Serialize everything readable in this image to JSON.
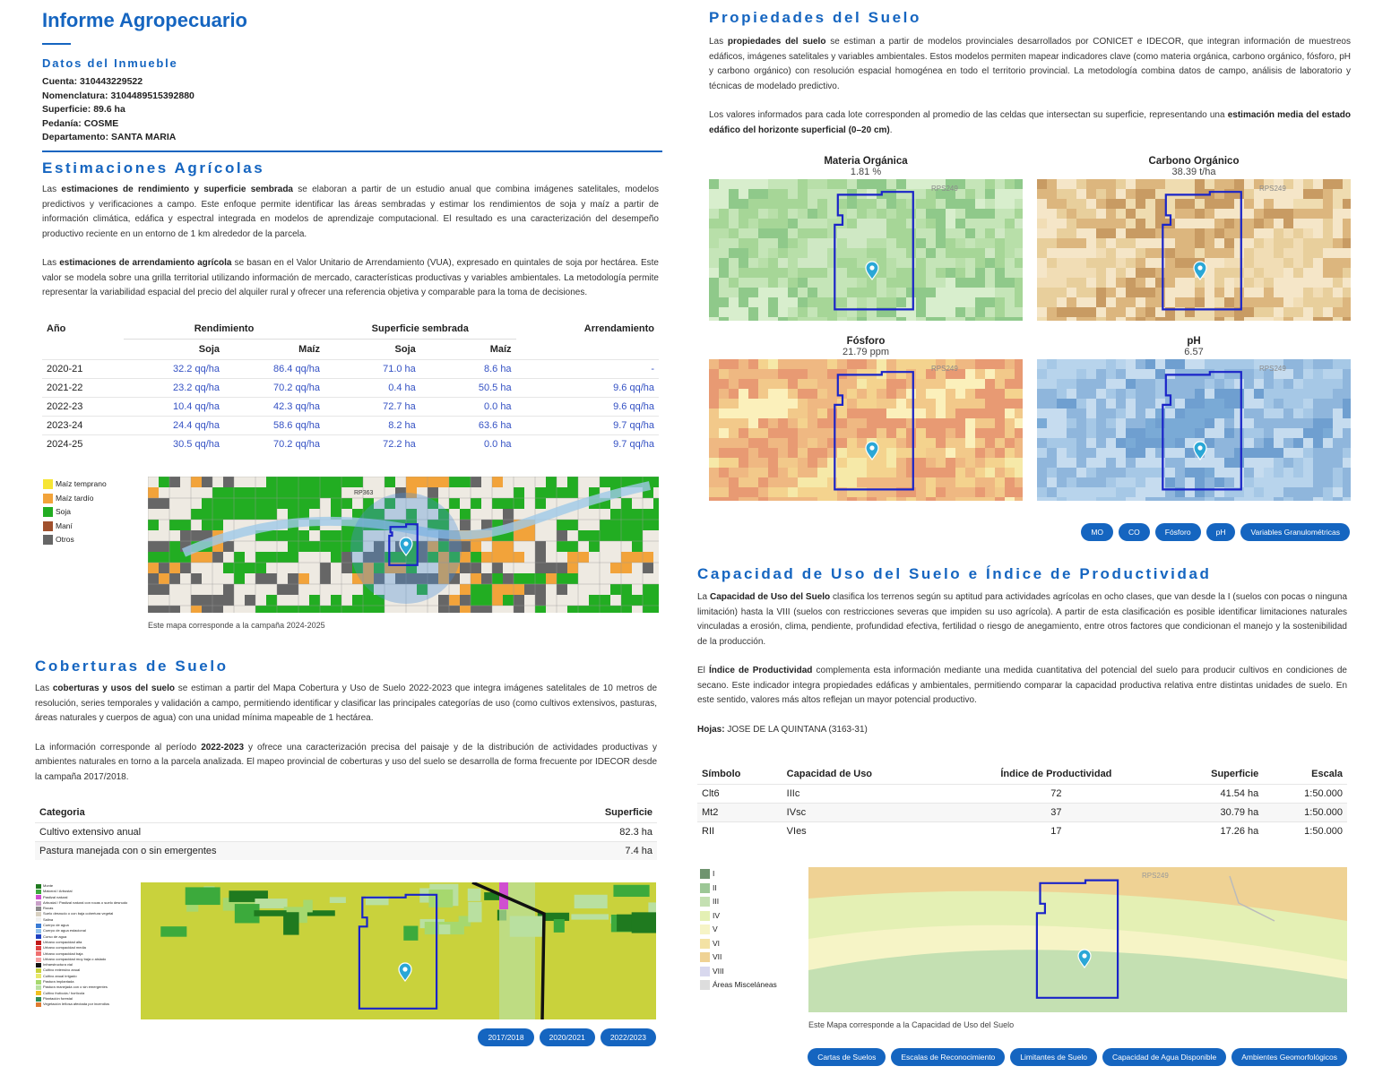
{
  "header": {
    "title": "Informe Agropecuario"
  },
  "inmueble": {
    "title": "Datos del Inmueble",
    "fields": [
      [
        "Cuenta:",
        "310443229522"
      ],
      [
        "Nomenclatura:",
        "3104489515392880"
      ],
      [
        "Superficie:",
        "89.6 ha"
      ],
      [
        "Pedanía:",
        "COSME"
      ],
      [
        "Departamento:",
        "SANTA MARIA"
      ]
    ]
  },
  "estimaciones": {
    "title": "Estimaciones Agrícolas",
    "paragraphs": [
      [
        "Las ",
        {
          "text": "estimaciones de rendimiento y superficie sembrada",
          "bold": true
        },
        " se elaboran a partir de un estudio anual que combina imágenes satelitales, modelos predictivos y verificaciones a campo. Este enfoque permite identificar las áreas sembradas y estimar los rendimientos de soja y maíz a partir de información climática, edáfica y espectral integrada en modelos de aprendizaje computacional. El resultado es una caracterización del desempeño productivo reciente en un entorno de 1 km alrededor de la parcela."
      ],
      [
        "Las ",
        {
          "text": "estimaciones de arrendamiento agrícola",
          "bold": true
        },
        " se basan en el Valor Unitario de Arrendamiento (VUA), expresado en quintales de soja por hectárea. Este valor se modela sobre una grilla territorial utilizando información de mercado, características productivas y variables ambientales. La metodología permite representar la variabilidad espacial del precio del alquiler rural y ofrecer una referencia objetiva y comparable para la toma de decisiones."
      ]
    ],
    "table": {
      "columns": [
        "Año",
        "Rendimiento",
        "Superficie sembrada",
        "Arrendamiento"
      ],
      "subcolumns": [
        "Soja",
        "Maíz",
        "Soja",
        "Maíz"
      ],
      "rows": [
        [
          "2020-21",
          "32.2 qq/ha",
          "86.4 qq/ha",
          "71.0 ha",
          "8.6 ha",
          "-"
        ],
        [
          "2021-22",
          "23.2 qq/ha",
          "70.2 qq/ha",
          "0.4 ha",
          "50.5 ha",
          "9.6 qq/ha"
        ],
        [
          "2022-23",
          "10.4 qq/ha",
          "42.3 qq/ha",
          "72.7 ha",
          "0.0 ha",
          "9.6 qq/ha"
        ],
        [
          "2023-24",
          "24.4 qq/ha",
          "58.6 qq/ha",
          "8.2 ha",
          "63.6 ha",
          "9.7 qq/ha"
        ],
        [
          "2024-25",
          "30.5 qq/ha",
          "70.2 qq/ha",
          "72.2 ha",
          "0.0 ha",
          "9.7 qq/ha"
        ]
      ]
    },
    "map": {
      "legend": [
        {
          "label": "Maíz temprano",
          "color": "#f6e534"
        },
        {
          "label": "Maíz tardío",
          "color": "#f2a33a"
        },
        {
          "label": "Soja",
          "color": "#22ad22"
        },
        {
          "label": "Maní",
          "color": "#a0502d"
        },
        {
          "label": "Otros",
          "color": "#666666"
        }
      ],
      "road": "RP363",
      "caption": "Este mapa corresponde a la campaña 2024-2025"
    }
  },
  "coberturas": {
    "title": "Coberturas de Suelo",
    "paragraphs": [
      [
        "Las ",
        {
          "text": "coberturas y usos del suelo",
          "bold": true
        },
        " se estiman a partir del Mapa Cobertura y Uso de Suelo 2022-2023 que integra imágenes satelitales de 10 metros de resolución, series temporales y validación a campo, permitiendo identificar y clasificar las principales categorías de uso (como cultivos extensivos, pasturas, áreas naturales y cuerpos de agua) con una unidad mínima mapeable de 1 hectárea."
      ],
      [
        "La información corresponde al período ",
        {
          "text": "2022-2023",
          "bold": true
        },
        " y ofrece una caracterización precisa del paisaje y de la distribución de actividades productivas y ambientes naturales en torno a la parcela analizada. El mapeo provincial de coberturas y uso del suelo se desarrolla de forma frecuente por IDECOR desde la campaña 2017/2018."
      ]
    ],
    "table": {
      "columns": [
        "Categoria",
        "Superficie"
      ],
      "rows": [
        [
          "Cultivo extensivo anual",
          "82.3 ha"
        ],
        [
          "Pastura manejada con o sin emergentes",
          "7.4 ha"
        ]
      ]
    },
    "legend": [
      {
        "label": "Monte",
        "color": "#1f7a1f"
      },
      {
        "label": "Matorral / Arbustal",
        "color": "#3caa3c"
      },
      {
        "label": "Pastizal natural",
        "color": "#d04fd0"
      },
      {
        "label": "Arbustal / Pastizal natural con rocas o suelo desnudo",
        "color": "#c8a0c8"
      },
      {
        "label": "Rocas",
        "color": "#8a8a8a"
      },
      {
        "label": "Suelo desnudo o con baja cobertura vegetal",
        "color": "#d8d0c0"
      },
      {
        "label": "Salina",
        "color": "#f0f0f0"
      },
      {
        "label": "Cuerpo de agua",
        "color": "#3a7bd5"
      },
      {
        "label": "Cuerpo de agua estacional",
        "color": "#8fc0ee"
      },
      {
        "label": "Curso de agua",
        "color": "#1e40c0"
      },
      {
        "label": "Urbano compacidad alta",
        "color": "#c01818"
      },
      {
        "label": "Urbano compacidad media",
        "color": "#e04040"
      },
      {
        "label": "Urbano compacidad baja",
        "color": "#f07070"
      },
      {
        "label": "Urbano compacidad muy baja o aislado",
        "color": "#f5a0a0"
      },
      {
        "label": "Infraestructura vial",
        "color": "#111111"
      },
      {
        "label": "Cultivo extensivo anual",
        "color": "#c9d23c"
      },
      {
        "label": "Cultivo anual irrigado",
        "color": "#e8e86a"
      },
      {
        "label": "Pastura implantada",
        "color": "#a6d86e"
      },
      {
        "label": "Pastura manejada con o sin emergentes",
        "color": "#b9e0a0"
      },
      {
        "label": "Cultivo frutícola / hortícola",
        "color": "#f0c020"
      },
      {
        "label": "Plantación forestal",
        "color": "#2e8b57"
      },
      {
        "label": "Vegetación leñosa afectada por incendios",
        "color": "#e07a30"
      }
    ],
    "buttons": [
      "2017/2018",
      "2020/2021",
      "2022/2023"
    ]
  },
  "propiedades": {
    "title": "Propiedades del Suelo",
    "paragraphs": [
      [
        "Las ",
        {
          "text": "propiedades del suelo",
          "bold": true
        },
        " se estiman a partir de modelos provinciales desarrollados por CONICET e IDECOR, que integran información de muestreos edáficos, imágenes satelitales y variables ambientales. Estos modelos permiten mapear indicadores clave (como materia orgánica, carbono orgánico, fósforo, pH y carbono orgánico) con resolución espacial homogénea en todo el territorio provincial. La metodología combina datos de campo, análisis de laboratorio y técnicas de modelado predictivo."
      ],
      [
        "Los valores informados para cada lote corresponden al promedio de las celdas que intersectan su superficie, representando una ",
        {
          "text": "estimación media del estado edáfico del horizonte superficial (0–20 cm)",
          "bold": true
        },
        "."
      ]
    ],
    "maps": [
      {
        "title": "Materia Orgánica",
        "value": "1.81 %"
      },
      {
        "title": "Carbono Orgánico",
        "value": "38.39 t/ha"
      },
      {
        "title": "Fósforo",
        "value": "21.79 ppm"
      },
      {
        "title": "pH",
        "value": "6.57"
      }
    ],
    "road": "RPS249",
    "buttons": [
      "MO",
      "CO",
      "Fósforo",
      "pH",
      "Variables Granulométricas"
    ]
  },
  "capacidad": {
    "title": "Capacidad de Uso del Suelo e Índice de Productividad",
    "paragraphs": [
      [
        "La ",
        {
          "text": "Capacidad de Uso del Suelo",
          "bold": true
        },
        " clasifica los terrenos según su aptitud para actividades agrícolas en ocho clases, que van desde la I (suelos con pocas o ninguna limitación) hasta la VIII (suelos con restricciones severas que impiden su uso agrícola). A partir de esta clasificación es posible identificar limitaciones naturales vinculadas a erosión, clima, pendiente, profundidad efectiva, fertilidad o riesgo de anegamiento, entre otros factores que condicionan el manejo y la sostenibilidad de la producción."
      ],
      [
        "El ",
        {
          "text": "Índice de Productividad",
          "bold": true
        },
        " complementa esta información mediante una medida cuantitativa del potencial del suelo para producir cultivos en condiciones de secano. Este indicador integra propiedades edáficas y ambientales, permitiendo comparar la capacidad productiva relativa entre distintas unidades de suelo. En este sentido, valores más altos reflejan un mayor potencial productivo."
      ],
      [
        {
          "text": "Hojas:",
          "bold": true
        },
        " JOSE DE LA QUINTANA (3163-31)"
      ]
    ],
    "table": {
      "columns": [
        "Símbolo",
        "Capacidad de Uso",
        "Índice de Productividad",
        "Superficie",
        "Escala"
      ],
      "rows": [
        [
          "Clt6",
          "IIIc",
          "72",
          "41.54 ha",
          "1:50.000"
        ],
        [
          "Mt2",
          "IVsc",
          "37",
          "30.79 ha",
          "1:50.000"
        ],
        [
          "RII",
          "VIes",
          "17",
          "17.26 ha",
          "1:50.000"
        ]
      ]
    },
    "legend": [
      {
        "label": "I",
        "color": "#6f946f"
      },
      {
        "label": "II",
        "color": "#9cc796"
      },
      {
        "label": "III",
        "color": "#c4e0b2"
      },
      {
        "label": "IV",
        "color": "#e4f0b4"
      },
      {
        "label": "V",
        "color": "#f6f4c6"
      },
      {
        "label": "VI",
        "color": "#f3e2a4"
      },
      {
        "label": "VII",
        "color": "#efd294"
      },
      {
        "label": "VIII",
        "color": "#d8d8ee"
      },
      {
        "label": "Áreas Misceláneas",
        "color": "#dddddd"
      }
    ],
    "caption": "Este Mapa corresponde a la Capacidad de Uso del Suelo",
    "buttons": [
      "Cartas de Suelos",
      "Escalas de Reconocimiento",
      "Limitantes de Suelo",
      "Capacidad de Agua Disponible",
      "Ambientes Geomorfológicos"
    ]
  }
}
